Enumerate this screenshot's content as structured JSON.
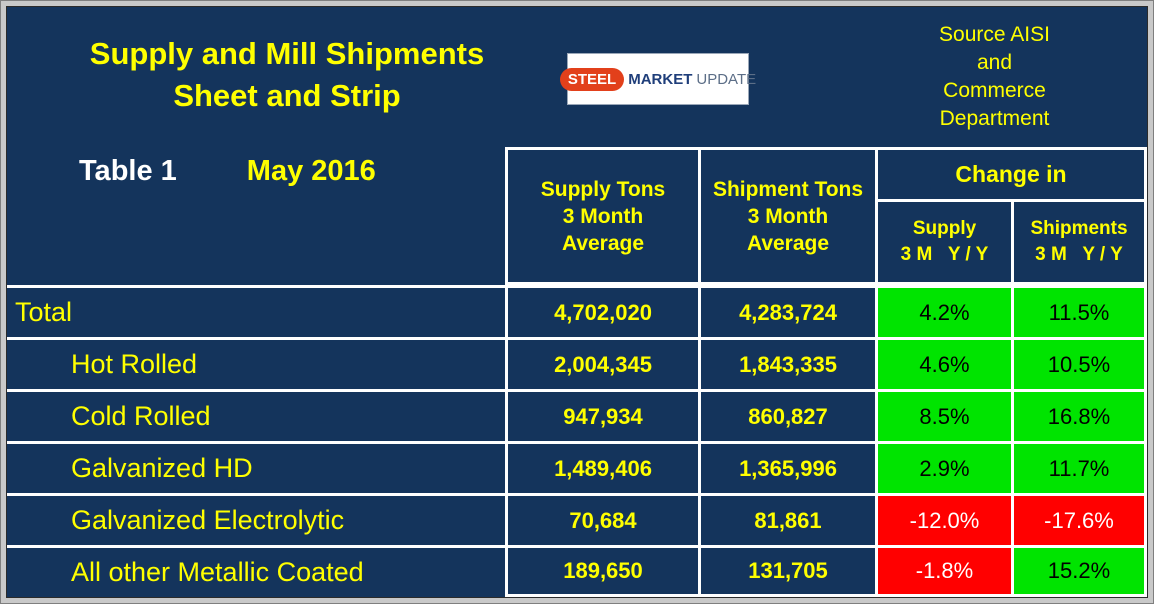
{
  "title": {
    "line1": "Supply and Mill Shipments",
    "line2": "Sheet and Strip",
    "table_label": "Table 1",
    "date": "May 2016"
  },
  "source": {
    "line1": "Source AISI",
    "line2": "and",
    "line3": "Commerce",
    "line4": "Department"
  },
  "logo": {
    "steel": "STEEL",
    "market": "MARKET",
    "update": "UPDATE"
  },
  "table": {
    "supply_header": {
      "l1": "Supply Tons",
      "l2": "3 Month",
      "l3": "Average"
    },
    "shipment_header": {
      "l1": "Shipment Tons",
      "l2": "3 Month",
      "l3": "Average"
    },
    "change_header": "Change in",
    "change_supply": {
      "label": "Supply",
      "sub": "3 M   Y / Y"
    },
    "change_shipments": {
      "label": "Shipments",
      "sub": "3 M   Y / Y"
    },
    "rows": [
      {
        "label": "Total",
        "supply": "4,702,020",
        "shipment": "4,283,724",
        "chg_supply": "4.2%",
        "chg_supply_trend": "up",
        "chg_ship": "11.5%",
        "chg_ship_trend": "up"
      },
      {
        "label": "Hot Rolled",
        "supply": "2,004,345",
        "shipment": "1,843,335",
        "chg_supply": "4.6%",
        "chg_supply_trend": "up",
        "chg_ship": "10.5%",
        "chg_ship_trend": "up"
      },
      {
        "label": "Cold Rolled",
        "supply": "947,934",
        "shipment": "860,827",
        "chg_supply": "8.5%",
        "chg_supply_trend": "up",
        "chg_ship": "16.8%",
        "chg_ship_trend": "up"
      },
      {
        "label": "Galvanized HD",
        "supply": "1,489,406",
        "shipment": "1,365,996",
        "chg_supply": "2.9%",
        "chg_supply_trend": "up",
        "chg_ship": "11.7%",
        "chg_ship_trend": "up"
      },
      {
        "label": "Galvanized Electrolytic",
        "supply": "70,684",
        "shipment": "81,861",
        "chg_supply": "-12.0%",
        "chg_supply_trend": "down",
        "chg_ship": "-17.6%",
        "chg_ship_trend": "down"
      },
      {
        "label": "All other Metallic Coated",
        "supply": "189,650",
        "shipment": "131,705",
        "chg_supply": "-1.8%",
        "chg_supply_trend": "down",
        "chg_ship": "15.2%",
        "chg_ship_trend": "up"
      }
    ]
  },
  "colors": {
    "bg": "#14345c",
    "yellow": "#ffff00",
    "positive": "#00e400",
    "negative": "#ff0000",
    "logo_orange": "#e2401b",
    "logo_blue": "#1f3e7a",
    "logo_gray": "#5c6e87"
  },
  "chart_data": {
    "type": "table",
    "title": "Supply and Mill Shipments Sheet and Strip",
    "subtitle": "Table 1 — May 2016",
    "source": "Source AISI and Commerce Department",
    "columns": [
      "Category",
      "Supply Tons 3 Month Average",
      "Shipment Tons 3 Month Average",
      "Change in Supply 3M Y/Y",
      "Change in Shipments 3M Y/Y"
    ],
    "rows": [
      [
        "Total",
        4702020,
        4283724,
        "4.2%",
        "11.5%"
      ],
      [
        "Hot Rolled",
        2004345,
        1843335,
        "4.6%",
        "10.5%"
      ],
      [
        "Cold Rolled",
        947934,
        860827,
        "8.5%",
        "16.8%"
      ],
      [
        "Galvanized HD",
        1489406,
        1365996,
        "2.9%",
        "11.7%"
      ],
      [
        "Galvanized Electrolytic",
        70684,
        81861,
        "-12.0%",
        "-17.6%"
      ],
      [
        "All other Metallic Coated",
        189650,
        131705,
        "-1.8%",
        "15.2%"
      ]
    ]
  }
}
